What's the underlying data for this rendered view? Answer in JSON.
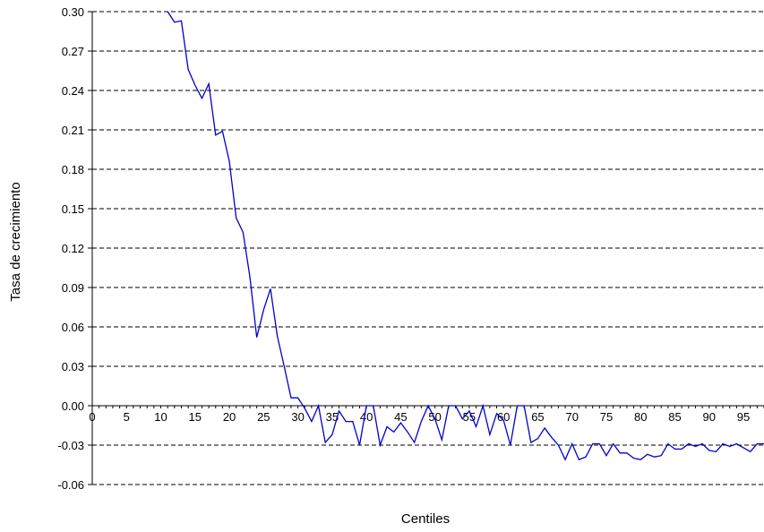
{
  "chart_data": {
    "type": "line",
    "title": "",
    "xlabel": "Centiles",
    "ylabel": "Tasa de crecimiento",
    "xlim": [
      0,
      98
    ],
    "ylim": [
      -0.06,
      0.3
    ],
    "grid": "horizontal dashed",
    "line_color": "#0000cc",
    "ytick_labels": [
      "0.30",
      "0.27",
      "0.24",
      "0.21",
      "0.18",
      "0.15",
      "0.12",
      "0.09",
      "0.06",
      "0.03",
      "0.00",
      "-0.03",
      "-0.06"
    ],
    "xtick_labels": [
      "0",
      "5",
      "10",
      "15",
      "20",
      "25",
      "30",
      "35",
      "40",
      "45",
      "50",
      "55",
      "60",
      "65",
      "70",
      "75",
      "80",
      "85",
      "90",
      "95"
    ],
    "series": [
      {
        "x": [
          11,
          12,
          13,
          14,
          15,
          16,
          17,
          18,
          19,
          20,
          21,
          22,
          23,
          24,
          25,
          26,
          27,
          28,
          29,
          30,
          31,
          32,
          33,
          34,
          35,
          36,
          37,
          38,
          39,
          40,
          41,
          42,
          43,
          44,
          45,
          46,
          47,
          48,
          49,
          50,
          51,
          52,
          53,
          54,
          55,
          56,
          57,
          58,
          59,
          60,
          61,
          62,
          63,
          64,
          65,
          66,
          67,
          68,
          69,
          70,
          71,
          72,
          73,
          74,
          75,
          76,
          77,
          78,
          79,
          80,
          81,
          82,
          83,
          84,
          85,
          86,
          87,
          88,
          89,
          90,
          91,
          92,
          93,
          94,
          95,
          96,
          97,
          98
        ],
        "y": [
          0.3,
          0.292,
          0.293,
          0.256,
          0.244,
          0.234,
          0.245,
          0.206,
          0.209,
          0.186,
          0.143,
          0.132,
          0.098,
          0.052,
          0.073,
          0.089,
          0.053,
          0.03,
          0.006,
          0.006,
          -0.002,
          -0.012,
          0.0,
          -0.028,
          -0.022,
          -0.004,
          -0.012,
          -0.012,
          -0.03,
          0.0,
          0.0,
          -0.03,
          -0.016,
          -0.02,
          -0.013,
          -0.02,
          -0.028,
          -0.012,
          0.0,
          -0.01,
          -0.026,
          0.0,
          0.0,
          -0.01,
          -0.004,
          -0.016,
          0.0,
          -0.022,
          -0.006,
          -0.011,
          -0.03,
          0.0,
          0.0,
          -0.028,
          -0.025,
          -0.017,
          -0.024,
          -0.03,
          -0.041,
          -0.029,
          -0.041,
          -0.039,
          -0.029,
          -0.029,
          -0.038,
          -0.029,
          -0.036,
          -0.036,
          -0.04,
          -0.041,
          -0.037,
          -0.039,
          -0.038,
          -0.029,
          -0.033,
          -0.033,
          -0.029,
          -0.031,
          -0.029,
          -0.034,
          -0.035,
          -0.029,
          -0.031,
          -0.029,
          -0.032,
          -0.035,
          -0.029,
          -0.029
        ]
      }
    ]
  }
}
